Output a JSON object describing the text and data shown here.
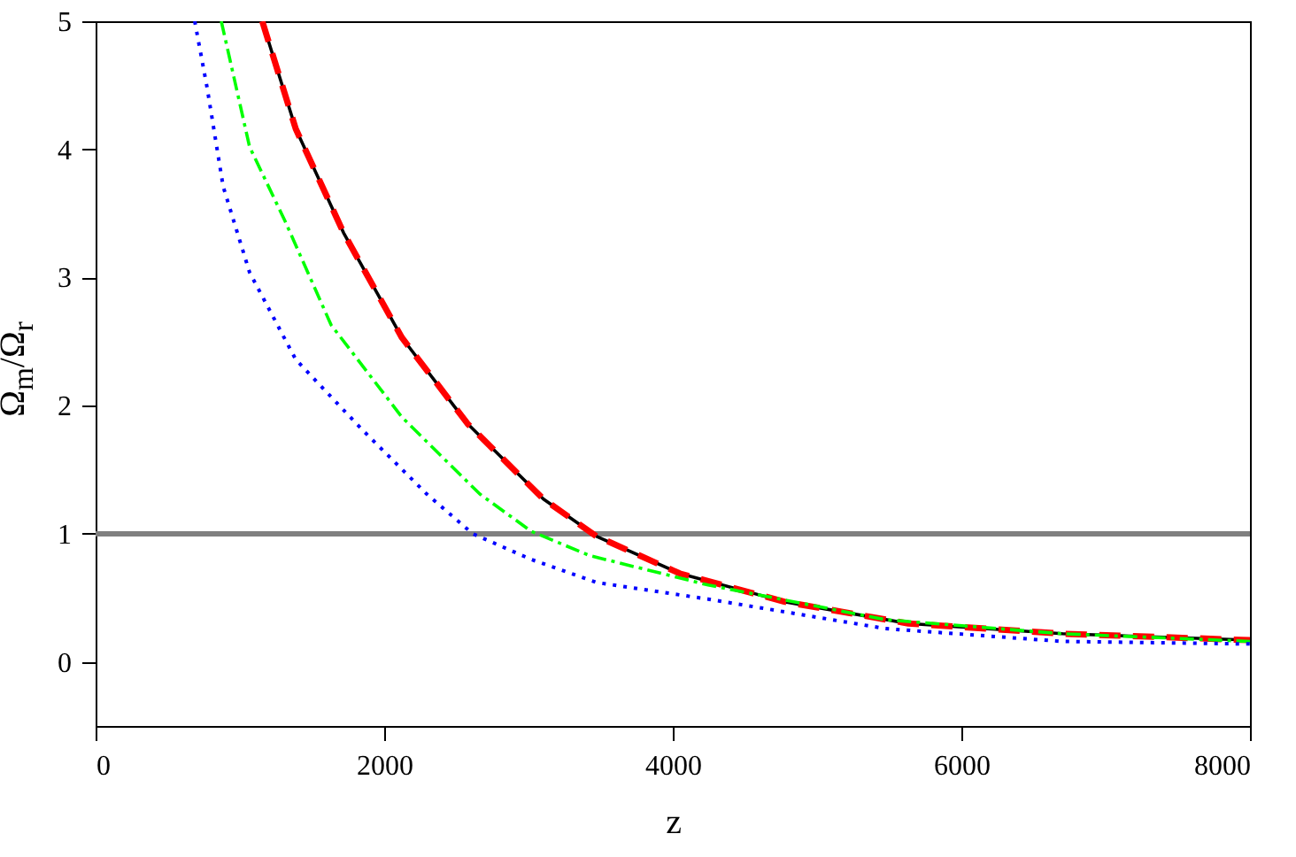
{
  "chart_data": {
    "type": "line",
    "xlabel": "z",
    "ylabel": "Ω$_{m}$/Ω$_{r}$",
    "xlim": [
      0,
      8000
    ],
    "ylim": [
      -0.5,
      5
    ],
    "xticks": [
      0,
      2000,
      4000,
      6000,
      8000
    ],
    "yticks": [
      0,
      1,
      2,
      3,
      4,
      5
    ],
    "grid": false,
    "marker": "none",
    "ref_lines": [
      {
        "axis": "y",
        "value": 1,
        "color": "#808080"
      }
    ],
    "series": [
      {
        "color": "#000000",
        "line_style": "solid",
        "x": [
          1155,
          1387,
          1718,
          2123,
          2577,
          3104,
          3472,
          4049,
          4773,
          5632,
          6700,
          8000
        ],
        "values": [
          5,
          4.16,
          3.35,
          2.53,
          1.86,
          1.27,
          0.98,
          0.69,
          0.47,
          0.3,
          0.22,
          0.17
        ]
      },
      {
        "color": "#ff0000",
        "line_style": "dashed",
        "x": [
          1155,
          1387,
          1718,
          2123,
          2577,
          3104,
          3472,
          4049,
          4773,
          5632,
          6700,
          8000
        ],
        "values": [
          5,
          4.16,
          3.35,
          2.53,
          1.86,
          1.27,
          0.98,
          0.69,
          0.47,
          0.3,
          0.22,
          0.17
        ]
      },
      {
        "color": "#00ff00",
        "line_style": "dashdot",
        "x": [
          871,
          1067,
          1313,
          1632,
          2123,
          2663,
          3018,
          3423,
          4245,
          5473,
          6700,
          8000
        ],
        "values": [
          5,
          4.02,
          3.44,
          2.63,
          1.91,
          1.31,
          1.02,
          0.83,
          0.6,
          0.33,
          0.22,
          0.16
        ]
      },
      {
        "color": "#0000ff",
        "line_style": "dotted",
        "x": [
          687,
          773,
          884,
          1067,
          1387,
          1841,
          2295,
          2614,
          3018,
          3472,
          4245,
          5473,
          6700,
          8000
        ],
        "values": [
          5,
          4.48,
          3.71,
          3.04,
          2.36,
          1.82,
          1.31,
          1,
          0.8,
          0.62,
          0.49,
          0.26,
          0.16,
          0.14
        ]
      }
    ]
  }
}
